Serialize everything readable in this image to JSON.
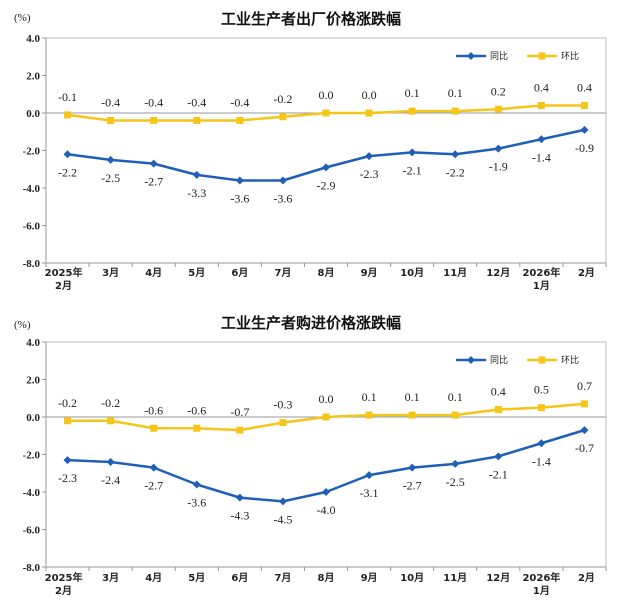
{
  "chart_data": [
    {
      "type": "line",
      "title": "工业生产者出厂价格涨跌幅",
      "unit": "(%)",
      "categories": [
        [
          "2025年",
          "2月"
        ],
        [
          "3月"
        ],
        [
          "4月"
        ],
        [
          "5月"
        ],
        [
          "6月"
        ],
        [
          "7月"
        ],
        [
          "8月"
        ],
        [
          "9月"
        ],
        [
          "10月"
        ],
        [
          "11月"
        ],
        [
          "12月"
        ],
        [
          "2026年",
          "1月"
        ],
        [
          "2月"
        ]
      ],
      "ylim": [
        -8.0,
        4.0
      ],
      "yticks": [
        "4.0",
        "2.0",
        "0.0",
        "-2.0",
        "-4.0",
        "-6.0",
        "-8.0"
      ],
      "legend_position": "top-right",
      "series": [
        {
          "name": "同比",
          "color": "#1f5fb8",
          "marker": "diamond",
          "label_position": "below",
          "values": [
            -2.2,
            -2.5,
            -2.7,
            -3.3,
            -3.6,
            -3.6,
            -2.9,
            -2.3,
            -2.1,
            -2.2,
            -1.9,
            -1.4,
            -0.9
          ],
          "labels": [
            "-2.2",
            "-2.5",
            "-2.7",
            "-3.3",
            "-3.6",
            "-3.6",
            "-2.9",
            "-2.3",
            "-2.1",
            "-2.2",
            "-1.9",
            "-1.4",
            "-0.9"
          ]
        },
        {
          "name": "环比",
          "color": "#f5c518",
          "marker": "square",
          "label_position": "above",
          "values": [
            -0.1,
            -0.4,
            -0.4,
            -0.4,
            -0.4,
            -0.2,
            0.0,
            0.0,
            0.1,
            0.1,
            0.2,
            0.4,
            0.4
          ],
          "labels": [
            "-0.1",
            "-0.4",
            "-0.4",
            "-0.4",
            "-0.4",
            "-0.2",
            "0.0",
            "0.0",
            "0.1",
            "0.1",
            "0.2",
            "0.4",
            "0.4"
          ]
        }
      ]
    },
    {
      "type": "line",
      "title": "工业生产者购进价格涨跌幅",
      "unit": "(%)",
      "categories": [
        [
          "2025年",
          "2月"
        ],
        [
          "3月"
        ],
        [
          "4月"
        ],
        [
          "5月"
        ],
        [
          "6月"
        ],
        [
          "7月"
        ],
        [
          "8月"
        ],
        [
          "9月"
        ],
        [
          "10月"
        ],
        [
          "11月"
        ],
        [
          "12月"
        ],
        [
          "2026年",
          "1月"
        ],
        [
          "2月"
        ]
      ],
      "ylim": [
        -8.0,
        4.0
      ],
      "yticks": [
        "4.0",
        "2.0",
        "0.0",
        "-2.0",
        "-4.0",
        "-6.0",
        "-8.0"
      ],
      "legend_position": "top-right",
      "series": [
        {
          "name": "同比",
          "color": "#1f5fb8",
          "marker": "diamond",
          "label_position": "below",
          "values": [
            -2.3,
            -2.4,
            -2.7,
            -3.6,
            -4.3,
            -4.5,
            -4.0,
            -3.1,
            -2.7,
            -2.5,
            -2.1,
            -1.4,
            -0.7
          ],
          "labels": [
            "-2.3",
            "-2.4",
            "-2.7",
            "-3.6",
            "-4.3",
            "-4.5",
            "-4.0",
            "-3.1",
            "-2.7",
            "-2.5",
            "-2.1",
            "-1.4",
            "-0.7"
          ]
        },
        {
          "name": "环比",
          "color": "#f5c518",
          "marker": "square",
          "label_position": "above",
          "values": [
            -0.2,
            -0.2,
            -0.6,
            -0.6,
            -0.7,
            -0.3,
            0.0,
            0.1,
            0.1,
            0.1,
            0.4,
            0.5,
            0.7
          ],
          "labels": [
            "-0.2",
            "-0.2",
            "-0.6",
            "-0.6",
            "-0.7",
            "-0.3",
            "0.0",
            "0.1",
            "0.1",
            "0.1",
            "0.4",
            "0.5",
            "0.7"
          ]
        }
      ]
    }
  ]
}
